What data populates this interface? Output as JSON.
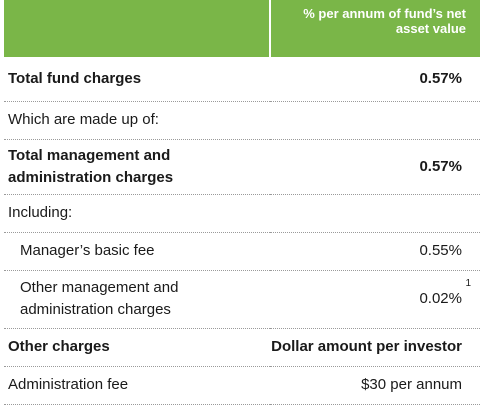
{
  "header": {
    "value_column": "% per annum of fund’s net asset value"
  },
  "rows": [
    {
      "label": "Total fund charges",
      "value": "0.57%"
    },
    {
      "label": "Which are made up of:",
      "value": ""
    },
    {
      "label": "Total management and administration charges",
      "value": "0.57%"
    },
    {
      "label": "Including:",
      "value": ""
    },
    {
      "label": "Manager’s basic fee",
      "value": "0.55%"
    },
    {
      "label": "Other management and administration charges",
      "value": "0.02%",
      "footnote": "1"
    },
    {
      "label": "Other charges",
      "value": "Dollar amount per investor"
    },
    {
      "label": "Administration fee",
      "value": "$30 per annum"
    }
  ],
  "colors": {
    "header_background": "#7ab648",
    "header_text": "#ffffff",
    "divider": "#9a9a9a"
  }
}
